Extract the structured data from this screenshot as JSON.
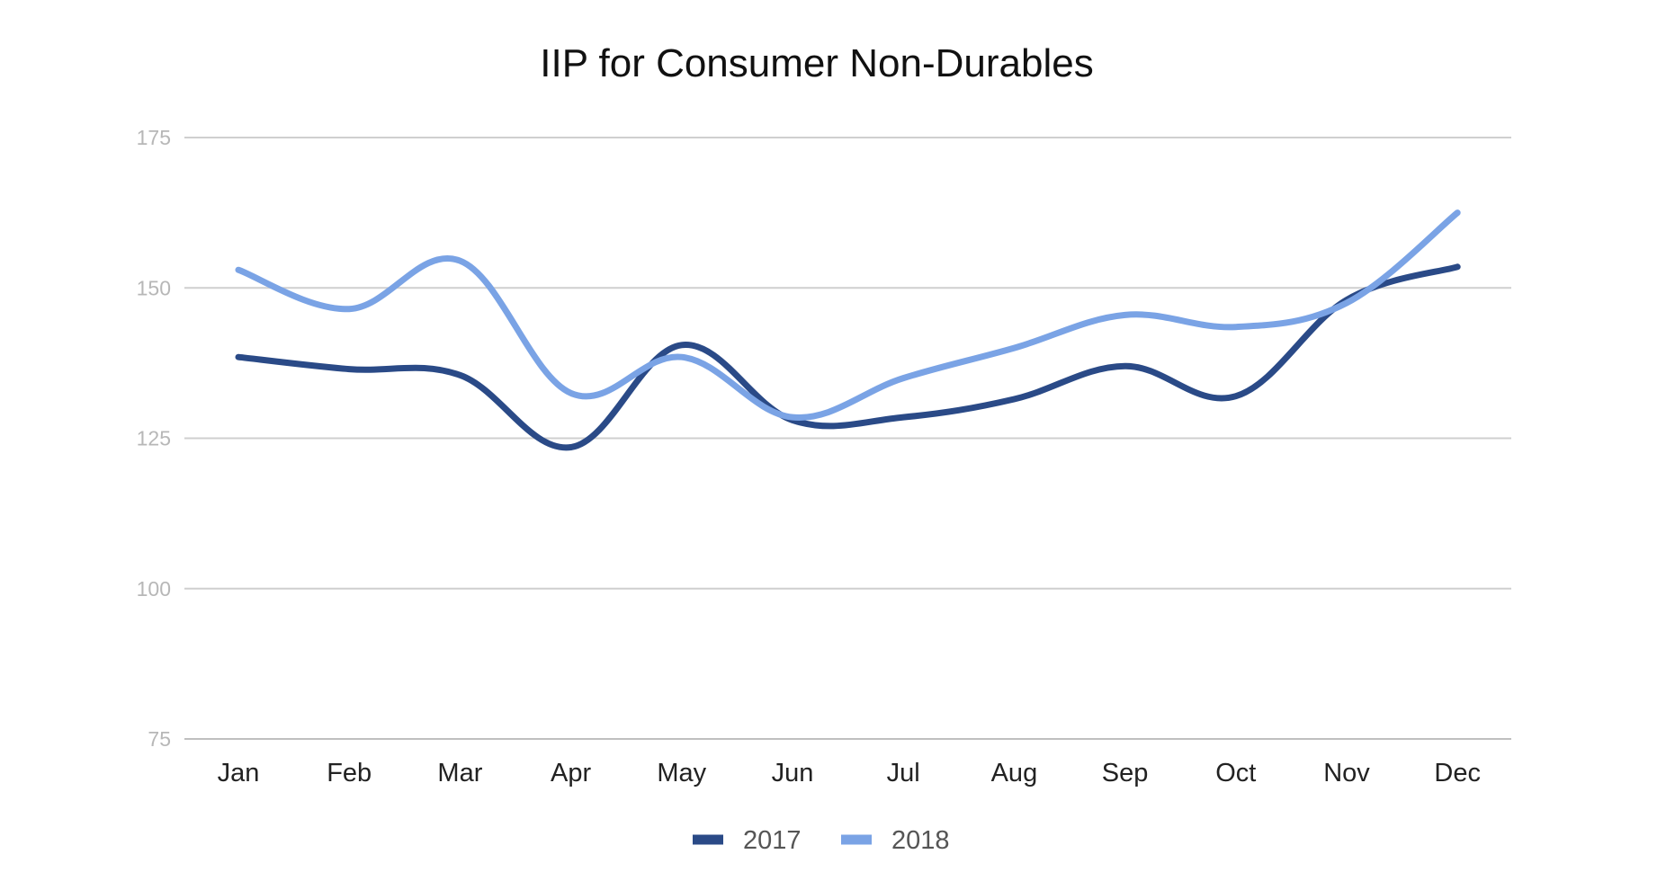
{
  "chart_data": {
    "type": "line",
    "title": "IIP for Consumer Non-Durables",
    "xlabel": "",
    "ylabel": "",
    "categories": [
      "Jan",
      "Feb",
      "Mar",
      "Apr",
      "May",
      "Jun",
      "Jul",
      "Aug",
      "Sep",
      "Oct",
      "Nov",
      "Dec"
    ],
    "y_ticks": [
      "75",
      "100",
      "125",
      "150",
      "175"
    ],
    "ylim": [
      75,
      175
    ],
    "grid": true,
    "legend_position": "bottom",
    "series": [
      {
        "name": "2017",
        "color": "#2a4a87",
        "values": [
          138.5,
          136.5,
          135.5,
          123.5,
          140.5,
          128.0,
          128.5,
          131.5,
          137.0,
          132.0,
          148.0,
          153.5
        ]
      },
      {
        "name": "2018",
        "color": "#7aa3e5",
        "values": [
          153.0,
          146.5,
          154.5,
          132.5,
          138.5,
          128.5,
          135.0,
          140.0,
          145.5,
          143.5,
          147.5,
          162.5
        ]
      }
    ]
  }
}
